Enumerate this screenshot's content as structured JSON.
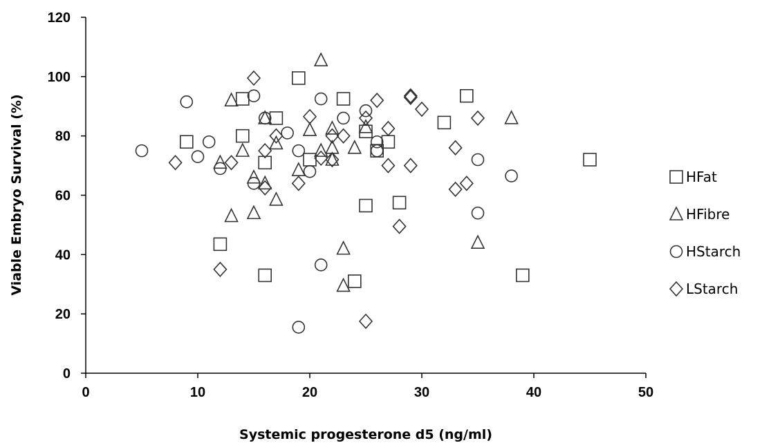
{
  "chart_data": {
    "type": "scatter",
    "title": "",
    "xlabel": "Systemic progesterone d5 (ng/ml)",
    "ylabel": "Viable Embryo Survival (%)",
    "xlim": [
      0,
      50
    ],
    "ylim": [
      0,
      120
    ],
    "xticks": [
      "0",
      "10",
      "20",
      "30",
      "40",
      "50"
    ],
    "yticks": [
      "0",
      "20",
      "40",
      "60",
      "80",
      "100",
      "120"
    ],
    "grid": false,
    "legend": "right",
    "series": [
      {
        "name": "HFat",
        "marker": "square",
        "x": [
          19,
          23,
          34,
          14,
          17,
          32,
          9,
          14,
          25,
          26,
          27,
          16,
          20,
          45,
          12,
          25,
          28,
          16,
          39,
          24
        ],
        "y": [
          99.5,
          92.5,
          93.5,
          92.5,
          86,
          84.5,
          78,
          80,
          81.5,
          75,
          78,
          71,
          72,
          72,
          43.5,
          56.5,
          57.5,
          33,
          33,
          31
        ]
      },
      {
        "name": "HFibre",
        "marker": "triangle",
        "x": [
          21,
          13,
          16,
          38,
          20,
          22,
          14,
          17,
          21,
          24,
          22,
          22,
          12,
          16,
          19,
          15,
          17,
          15,
          13,
          35,
          23,
          23,
          25
        ],
        "y": [
          105.5,
          92,
          86,
          86,
          82,
          82.5,
          75,
          77.5,
          75,
          76,
          76,
          72,
          71,
          64,
          68.5,
          66,
          58.5,
          54,
          53,
          44,
          42,
          29.5,
          83
        ]
      },
      {
        "name": "HStarch",
        "marker": "circle",
        "x": [
          9,
          15,
          21,
          16,
          23,
          25,
          5,
          10,
          11,
          12,
          18,
          19,
          20,
          15,
          35,
          38,
          35,
          21,
          19,
          26,
          26
        ],
        "y": [
          91.5,
          93.5,
          92.5,
          86,
          86,
          88.5,
          75,
          73,
          78,
          69,
          81,
          75,
          68,
          64,
          72,
          66.5,
          54,
          36.5,
          15.5,
          78,
          75
        ]
      },
      {
        "name": "LStarch",
        "marker": "diamond",
        "x": [
          15,
          29,
          29,
          26,
          30,
          20,
          35,
          25,
          27,
          23,
          22,
          17,
          33,
          16,
          8,
          13,
          21,
          22,
          27,
          29,
          19,
          16,
          33,
          34,
          28,
          12,
          25
        ],
        "y": [
          99.5,
          93.5,
          93,
          92,
          89,
          86.5,
          86,
          86,
          82.5,
          80,
          80,
          80,
          76,
          75,
          71,
          71,
          72.5,
          72,
          70,
          70,
          64,
          62.5,
          62,
          64,
          49.5,
          35,
          17.5
        ]
      }
    ]
  }
}
